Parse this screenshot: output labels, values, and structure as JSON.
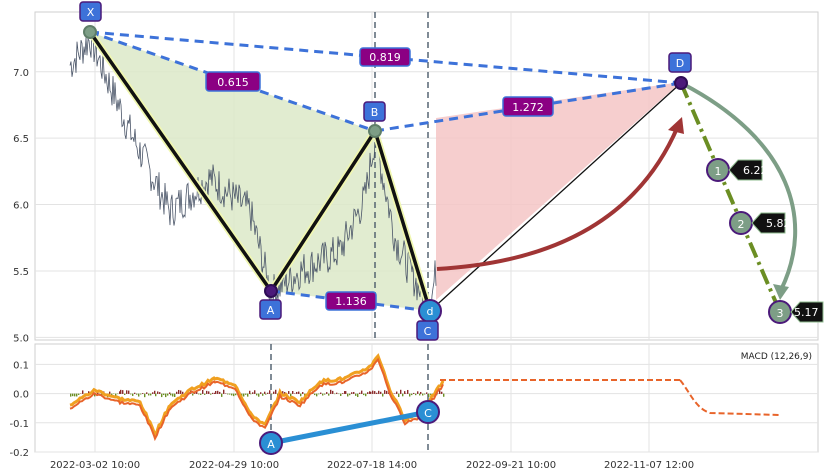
{
  "chart_data": {
    "type": "line",
    "panels": {
      "price": {
        "yticks": [
          "7.0",
          "6.5",
          "6.0",
          "5.5",
          "5.0"
        ],
        "ylim": [
          4.98,
          7.45
        ]
      },
      "macd": {
        "label": "MACD (12,26,9)",
        "yticks": [
          "0.1",
          "0.0",
          "-0.1",
          "-0.2"
        ],
        "ylim": [
          -0.2,
          0.17
        ]
      }
    },
    "x_ticks": [
      "2022-03-02 10:00",
      "2022-04-29 10:00",
      "2022-07-18 14:00",
      "2022-09-21 10:00",
      "2022-11-07 12:00"
    ],
    "pattern_points": [
      {
        "label": "X",
        "value": 7.25
      },
      {
        "label": "A",
        "value": 5.33
      },
      {
        "label": "B",
        "value": 6.51
      },
      {
        "label": "C",
        "value": 5.18
      },
      {
        "label": "D",
        "value": 6.87
      }
    ],
    "d_marker": "d",
    "ratios": [
      "0.615",
      "0.819",
      "1.136",
      "1.272"
    ],
    "targets": [
      {
        "n": "1",
        "value": "6.22"
      },
      {
        "n": "2",
        "value": "5.82"
      },
      {
        "n": "3",
        "value": "5.17"
      }
    ],
    "macd_divergence": {
      "from": "A",
      "to": "C",
      "from_value": -0.19,
      "to_value": -0.07
    },
    "colors": {
      "xab_fill": "#dce9c8",
      "bcd_fill": "#f5c6c6",
      "leg": "#111111",
      "dashed": "#3d72d9",
      "ratio_box": "#8b0083",
      "point_box": "#3d72d9",
      "arrow": "#a03535",
      "target_line": "#6b8e23",
      "target_arc": "#7d9e86",
      "macd_line": "#e8642a",
      "macd_signal": "#f0a020",
      "divergence": "#2a8fd4",
      "price": "#4a5568"
    }
  }
}
